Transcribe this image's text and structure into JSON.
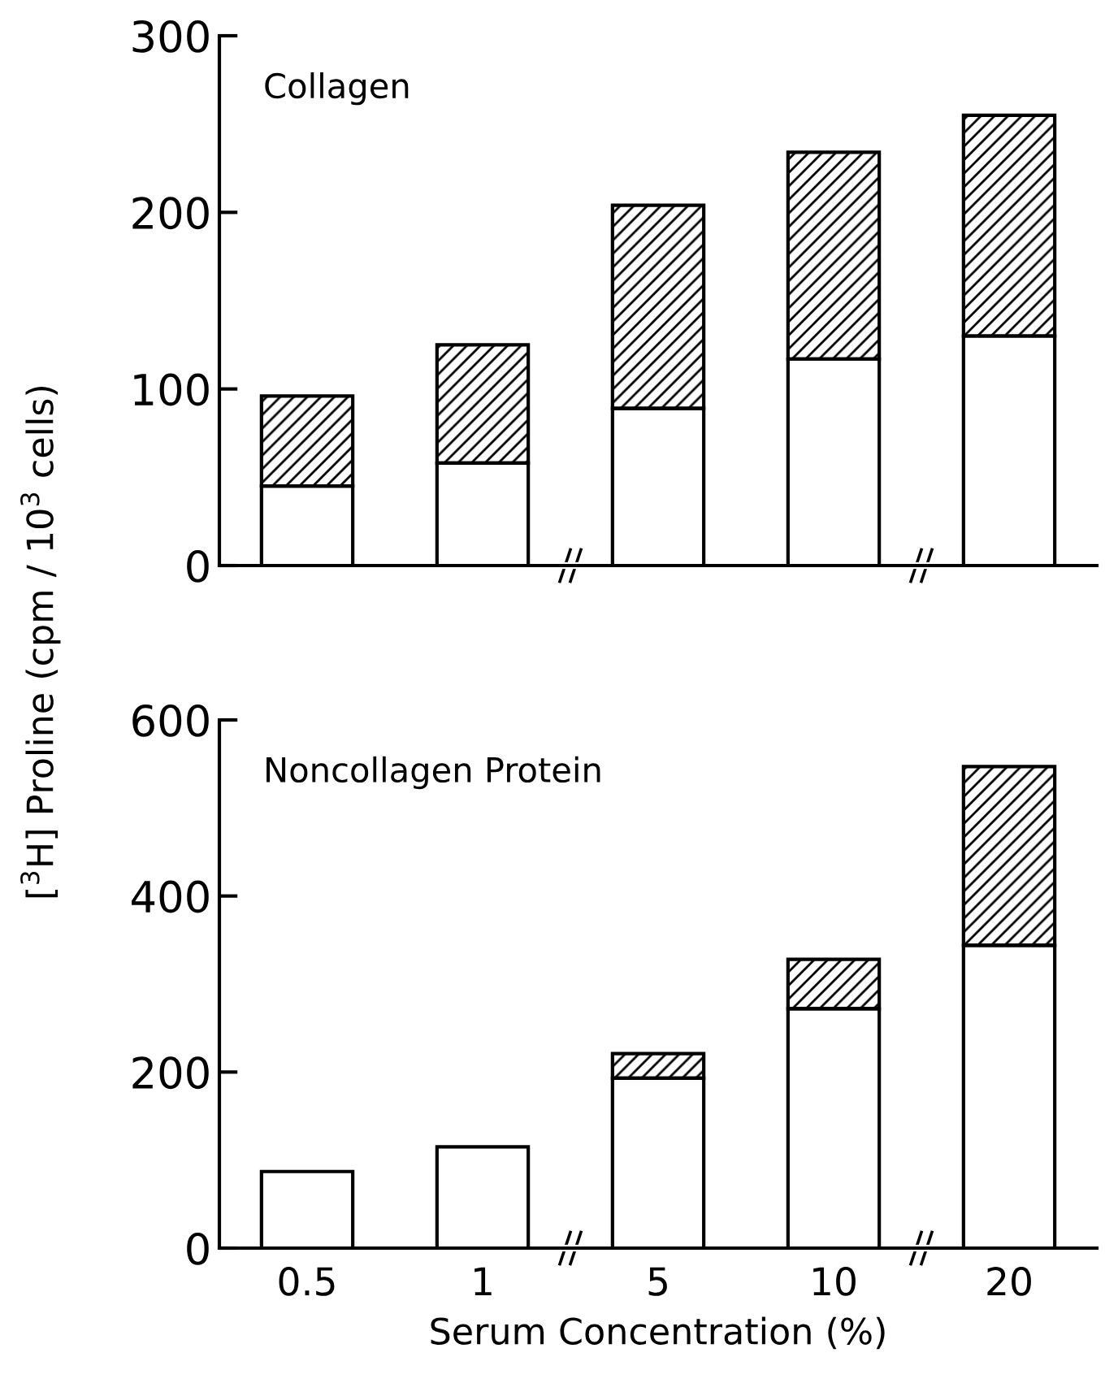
{
  "chart_data": [
    {
      "type": "bar",
      "title": "Collagen",
      "ylabel": "[$^{3}$H] Proline (cpm / 10$^{3}$ cells)",
      "stacked": true,
      "categories": [
        "0.5",
        "1",
        "5",
        "10",
        "20"
      ],
      "series": [
        {
          "color": "#ffffff",
          "values": [
            45,
            58,
            89,
            117,
            130
          ]
        },
        {
          "color": "#000000",
          "values": [
            51,
            67,
            115,
            117,
            125
          ]
        }
      ],
      "ylim": [
        0,
        300
      ],
      "yticks": [
        0,
        100,
        200,
        300
      ],
      "tick_labels": "y"
    },
    {
      "type": "bar",
      "title": "Noncollagen Protein",
      "xlabel": "Serum Concentration (%)",
      "stacked": true,
      "categories": [
        "0.5",
        "1",
        "5",
        "10",
        "20"
      ],
      "series": [
        {
          "color": "#ffffff",
          "values": [
            87,
            115,
            193,
            272,
            344
          ]
        },
        {
          "color": "#000000",
          "values": [
            null,
            null,
            28,
            56,
            203
          ]
        }
      ],
      "ylim": [
        0,
        600
      ],
      "yticks": [
        0,
        200,
        400,
        600
      ]
    }
  ]
}
